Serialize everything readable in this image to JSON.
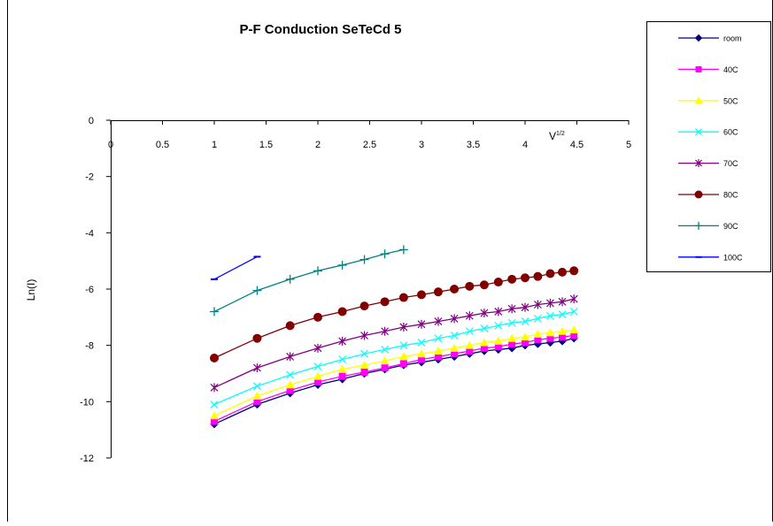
{
  "chart_data": {
    "type": "line",
    "title": "P-F Conduction  SeTeCd 5",
    "xlabel": "V",
    "xlabel_sup": "1/2",
    "ylabel": "Ln(I)",
    "xlim": [
      0,
      5
    ],
    "ylim": [
      -12,
      0
    ],
    "x_ticks": [
      "0",
      "0.5",
      "1",
      "1.5",
      "2",
      "2.5",
      "3",
      "3.5",
      "4",
      "4.5",
      "5"
    ],
    "y_ticks": [
      "0",
      "-2",
      "-4",
      "-6",
      "-8",
      "-10",
      "-12"
    ],
    "x_axis_position": "top (at y = 0)",
    "grid": false,
    "legend_position": "right",
    "series": [
      {
        "name": "room",
        "color": "#000080",
        "marker": "diamond",
        "x": [
          1.0,
          1.414,
          1.732,
          2.0,
          2.236,
          2.449,
          2.646,
          2.828,
          3.0,
          3.162,
          3.317,
          3.464,
          3.606,
          3.742,
          3.873,
          4.0,
          4.123,
          4.243,
          4.359,
          4.472
        ],
        "y": [
          -10.8,
          -10.1,
          -9.7,
          -9.4,
          -9.2,
          -9.0,
          -8.85,
          -8.7,
          -8.6,
          -8.5,
          -8.4,
          -8.3,
          -8.2,
          -8.15,
          -8.1,
          -8.0,
          -7.95,
          -7.9,
          -7.85,
          -7.75
        ]
      },
      {
        "name": "40C",
        "color": "#ff00ff",
        "marker": "square",
        "x": [
          1.0,
          1.414,
          1.732,
          2.0,
          2.236,
          2.449,
          2.646,
          2.828,
          3.0,
          3.162,
          3.317,
          3.464,
          3.606,
          3.742,
          3.873,
          4.0,
          4.123,
          4.243,
          4.359,
          4.472
        ],
        "y": [
          -10.7,
          -10.0,
          -9.6,
          -9.3,
          -9.1,
          -8.95,
          -8.8,
          -8.65,
          -8.5,
          -8.4,
          -8.3,
          -8.2,
          -8.1,
          -8.05,
          -7.95,
          -7.9,
          -7.8,
          -7.75,
          -7.7,
          -7.65
        ]
      },
      {
        "name": "50C",
        "color": "#ffff00",
        "marker": "triangle",
        "x": [
          1.0,
          1.414,
          1.732,
          2.0,
          2.236,
          2.449,
          2.646,
          2.828,
          3.0,
          3.162,
          3.317,
          3.464,
          3.606,
          3.742,
          3.873,
          4.0,
          4.123,
          4.243,
          4.359,
          4.472
        ],
        "y": [
          -10.5,
          -9.8,
          -9.4,
          -9.1,
          -8.85,
          -8.7,
          -8.55,
          -8.4,
          -8.3,
          -8.2,
          -8.1,
          -8.0,
          -7.9,
          -7.85,
          -7.75,
          -7.7,
          -7.6,
          -7.55,
          -7.5,
          -7.45
        ]
      },
      {
        "name": "60C",
        "color": "#00ffff",
        "marker": "x",
        "x": [
          1.0,
          1.414,
          1.732,
          2.0,
          2.236,
          2.449,
          2.646,
          2.828,
          3.0,
          3.162,
          3.317,
          3.464,
          3.606,
          3.742,
          3.873,
          4.0,
          4.123,
          4.243,
          4.359,
          4.472
        ],
        "y": [
          -10.1,
          -9.45,
          -9.05,
          -8.75,
          -8.5,
          -8.3,
          -8.15,
          -8.0,
          -7.9,
          -7.75,
          -7.65,
          -7.5,
          -7.4,
          -7.3,
          -7.2,
          -7.15,
          -7.05,
          -6.95,
          -6.9,
          -6.8
        ]
      },
      {
        "name": "70C",
        "color": "#800080",
        "marker": "star",
        "x": [
          1.0,
          1.414,
          1.732,
          2.0,
          2.236,
          2.449,
          2.646,
          2.828,
          3.0,
          3.162,
          3.317,
          3.464,
          3.606,
          3.742,
          3.873,
          4.0,
          4.123,
          4.243,
          4.359,
          4.472
        ],
        "y": [
          -9.5,
          -8.8,
          -8.4,
          -8.1,
          -7.85,
          -7.65,
          -7.5,
          -7.35,
          -7.25,
          -7.15,
          -7.05,
          -6.95,
          -6.85,
          -6.8,
          -6.7,
          -6.65,
          -6.55,
          -6.5,
          -6.45,
          -6.35
        ]
      },
      {
        "name": "80C",
        "color": "#800000",
        "marker": "circle",
        "x": [
          1.0,
          1.414,
          1.732,
          2.0,
          2.236,
          2.449,
          2.646,
          2.828,
          3.0,
          3.162,
          3.317,
          3.464,
          3.606,
          3.742,
          3.873,
          4.0,
          4.123,
          4.243,
          4.359,
          4.472
        ],
        "y": [
          -8.45,
          -7.75,
          -7.3,
          -7.0,
          -6.8,
          -6.6,
          -6.45,
          -6.3,
          -6.2,
          -6.1,
          -6.0,
          -5.9,
          -5.85,
          -5.75,
          -5.65,
          -5.6,
          -5.55,
          -5.45,
          -5.4,
          -5.35
        ]
      },
      {
        "name": "90C",
        "color": "#008080",
        "marker": "plus",
        "x": [
          1.0,
          1.414,
          1.732,
          2.0,
          2.236,
          2.449,
          2.646,
          2.828
        ],
        "y": [
          -6.8,
          -6.05,
          -5.65,
          -5.35,
          -5.15,
          -4.95,
          -4.75,
          -4.6
        ]
      },
      {
        "name": "100C",
        "color": "#0000ff",
        "marker": "dash",
        "x": [
          1.0,
          1.414
        ],
        "y": [
          -5.65,
          -4.85
        ]
      }
    ]
  }
}
